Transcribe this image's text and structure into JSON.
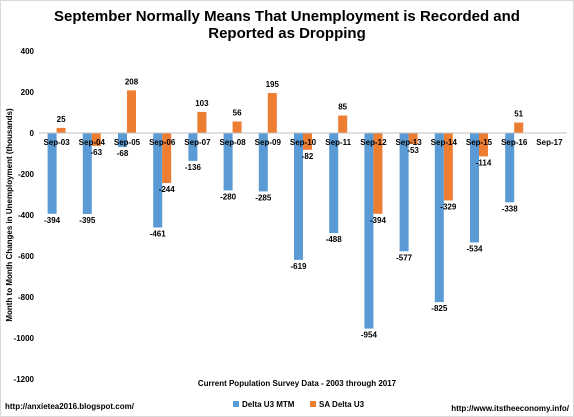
{
  "chart_data": {
    "type": "bar",
    "title_lines": [
      "September Normally Means That Unemployment is Recorded and",
      "Reported as Dropping"
    ],
    "categories": [
      "Sep-03",
      "Sep-04",
      "Sep-05",
      "Sep-06",
      "Sep-07",
      "Sep-08",
      "Sep-09",
      "Sep-10",
      "Sep-11",
      "Sep-12",
      "Sep-13",
      "Sep-14",
      "Sep-15",
      "Sep-16",
      "Sep-17"
    ],
    "series": [
      {
        "name": "Delta U3 MTM",
        "color": "#5b9bd5",
        "values": [
          -394,
          -395,
          -68,
          -461,
          -136,
          -280,
          -285,
          -619,
          -488,
          -954,
          -577,
          -825,
          -534,
          -338,
          null
        ],
        "labels": [
          "-394",
          "-395",
          "-68",
          "-461",
          "-136",
          "-280",
          "-285",
          "-619",
          "-488",
          "-954",
          "-577",
          "-825",
          "-534",
          "-338",
          ""
        ]
      },
      {
        "name": "SA Delta U3",
        "color": "#ed7d31",
        "values": [
          25,
          -63,
          208,
          -244,
          103,
          56,
          195,
          -82,
          85,
          -394,
          -53,
          -329,
          -114,
          51,
          null
        ],
        "labels": [
          "25",
          "-63",
          "208",
          "-244",
          "103",
          "56",
          "195",
          "-82",
          "85",
          "-394",
          "-53",
          "-329",
          "-114",
          "51",
          ""
        ]
      }
    ],
    "ylabel": "Month to Month Changes in Unemployment (thousands)",
    "xlabel": "Current Population Survey Data - 2003 through 2017",
    "ylim": [
      -1200,
      400
    ],
    "yticks": [
      400,
      200,
      0,
      -200,
      -400,
      -600,
      -800,
      -1000,
      -1200
    ],
    "ytick_labels": [
      "400",
      "200",
      "0",
      "-200",
      "-400",
      "-600",
      "-800",
      "-1000",
      "-1200"
    ],
    "grid": false,
    "legend_position": "bottom-center"
  },
  "footer": {
    "left": "http://anxietea2016.blogspot.com/",
    "right": "http://www.itstheeconomy.info/"
  }
}
